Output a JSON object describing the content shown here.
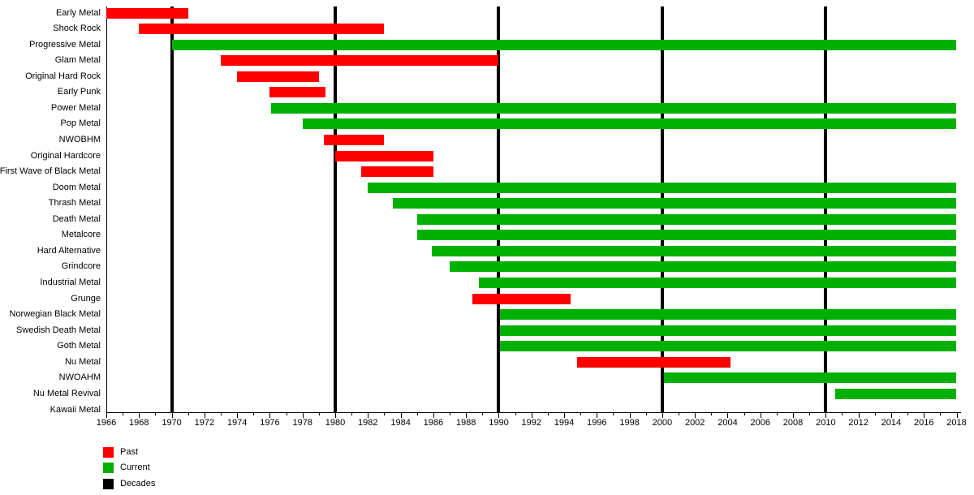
{
  "chart_data": {
    "type": "bar",
    "variant": "horizontal-gantt-timeline",
    "title": "",
    "xlabel": "",
    "ylabel": "",
    "axis": {
      "min": 1966,
      "max": 2018,
      "major_tick_step": 2,
      "minor_tick_step": 1,
      "tick_labels": [
        "1966",
        "1968",
        "1970",
        "1972",
        "1974",
        "1976",
        "1978",
        "1980",
        "1982",
        "1984",
        "1986",
        "1988",
        "1990",
        "1992",
        "1994",
        "1996",
        "1998",
        "2000",
        "2002",
        "2004",
        "2006",
        "2008",
        "2010",
        "2012",
        "2014",
        "2016",
        "2018"
      ]
    },
    "decade_lines": [
      1970,
      1980,
      1990,
      2000,
      2010
    ],
    "colors": {
      "past": "#ff0000",
      "current": "#00b000",
      "decades": "#000000"
    },
    "legend": [
      {
        "key": "past",
        "label": "Past"
      },
      {
        "key": "current",
        "label": "Current"
      },
      {
        "key": "decades",
        "label": "Decades"
      }
    ],
    "rows": [
      {
        "label": "Early Metal",
        "start": 1966,
        "end": 1971,
        "status": "past"
      },
      {
        "label": "Shock Rock",
        "start": 1968,
        "end": 1983,
        "status": "past"
      },
      {
        "label": "Progressive Metal",
        "start": 1970,
        "end": 2018,
        "status": "current"
      },
      {
        "label": "Glam Metal",
        "start": 1973,
        "end": 1990,
        "status": "past"
      },
      {
        "label": "Original Hard Rock",
        "start": 1974,
        "end": 1979,
        "status": "past"
      },
      {
        "label": "Early Punk",
        "start": 1976,
        "end": 1979.4,
        "status": "past"
      },
      {
        "label": "Power Metal",
        "start": 1976.1,
        "end": 2018,
        "status": "current"
      },
      {
        "label": "Pop Metal",
        "start": 1978,
        "end": 2018,
        "status": "current"
      },
      {
        "label": "NWOBHM",
        "start": 1979.3,
        "end": 1983,
        "status": "past"
      },
      {
        "label": "Original Hardcore",
        "start": 1980,
        "end": 1986,
        "status": "past"
      },
      {
        "label": "First Wave of Black Metal",
        "start": 1981.6,
        "end": 1986,
        "status": "past"
      },
      {
        "label": "Doom Metal",
        "start": 1982,
        "end": 2018,
        "status": "current"
      },
      {
        "label": "Thrash Metal",
        "start": 1983.5,
        "end": 2018,
        "status": "current"
      },
      {
        "label": "Death Metal",
        "start": 1985,
        "end": 2018,
        "status": "current"
      },
      {
        "label": "Metalcore",
        "start": 1985,
        "end": 2018,
        "status": "current"
      },
      {
        "label": "Hard Alternative",
        "start": 1985.9,
        "end": 2018,
        "status": "current"
      },
      {
        "label": "Grindcore",
        "start": 1987,
        "end": 2018,
        "status": "current"
      },
      {
        "label": "Industrial Metal",
        "start": 1988.8,
        "end": 2018,
        "status": "current"
      },
      {
        "label": "Grunge",
        "start": 1988.4,
        "end": 1994.4,
        "status": "past"
      },
      {
        "label": "Norwegian Black Metal",
        "start": 1990.1,
        "end": 2018,
        "status": "current"
      },
      {
        "label": "Swedish Death Metal",
        "start": 1990.1,
        "end": 2018,
        "status": "current"
      },
      {
        "label": "Goth Metal",
        "start": 1990.1,
        "end": 2018,
        "status": "current"
      },
      {
        "label": "Nu Metal",
        "start": 1994.8,
        "end": 2004.2,
        "status": "past"
      },
      {
        "label": "NWOAHM",
        "start": 2000.1,
        "end": 2018,
        "status": "current"
      },
      {
        "label": "Nu Metal Revival",
        "start": 2010.6,
        "end": 2018,
        "status": "current"
      },
      {
        "label": "Kawaii Metal",
        "start": null,
        "end": null,
        "status": "none"
      }
    ]
  }
}
